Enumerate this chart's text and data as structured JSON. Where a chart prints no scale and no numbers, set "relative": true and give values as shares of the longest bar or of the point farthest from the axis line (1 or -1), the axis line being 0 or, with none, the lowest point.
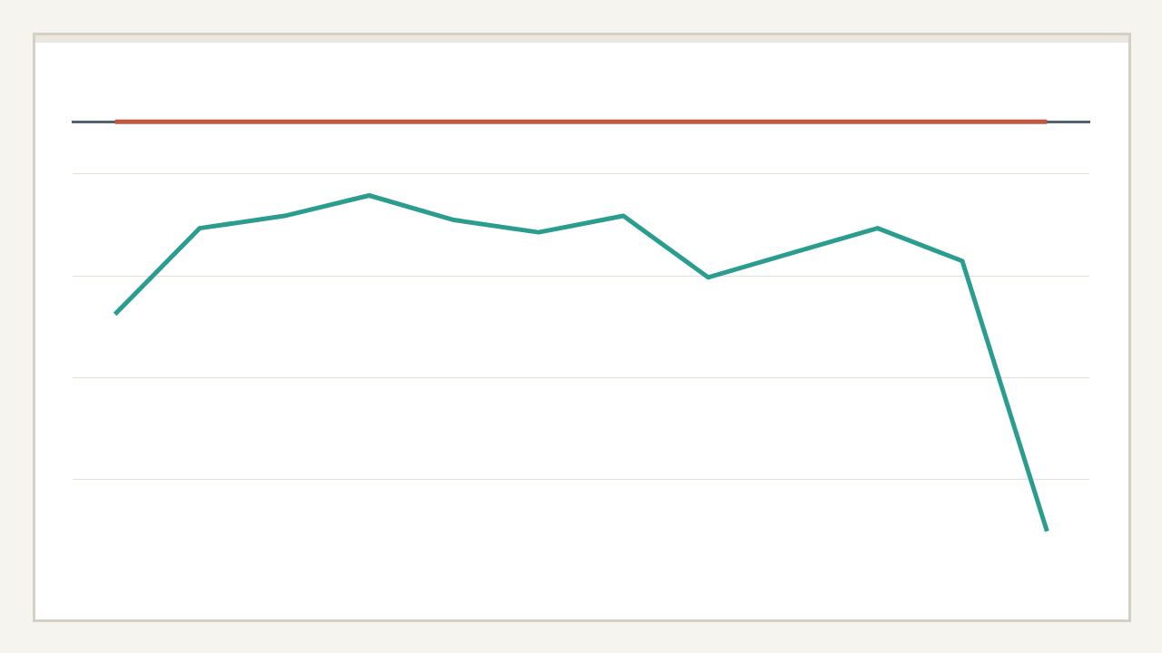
{
  "chart_data": {
    "type": "line",
    "relative": true,
    "categories": [
      null,
      null,
      null,
      null,
      null,
      null,
      null,
      null,
      null,
      null,
      null,
      null
    ],
    "series": [
      {
        "color": "#2a9d8f",
        "values": [
          -0.47,
          -0.26,
          -0.23,
          -0.18,
          -0.24,
          -0.27,
          -0.23,
          -0.38,
          -0.32,
          -0.26,
          -0.34,
          -1
        ]
      },
      {
        "color": "#c0573e",
        "values": [
          0,
          0,
          0,
          0,
          0,
          0,
          0,
          0,
          0,
          0,
          0,
          0
        ]
      }
    ],
    "grid": "y",
    "marker": "none"
  }
}
